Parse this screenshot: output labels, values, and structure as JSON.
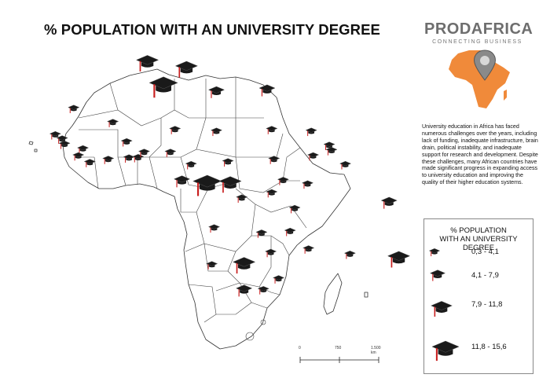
{
  "title": "% POPULATION WITH AN UNIVERSITY DEGREE",
  "brand": {
    "name": "PRODAFRICA",
    "tagline": "CONNECTING BUSINESS"
  },
  "description": "University education in Africa has faced numerous challenges over the years, including lack of funding, inadequate infrastructure, brain drain, political instability, and inadequate support for research and development. Despite these challenges, many African countries have made significant progress in expanding access to university education and improving the quality of their higher education systems.",
  "legend": {
    "title_line1": "% POPULATION",
    "title_line2": "WITH AN UNIVERSITY DEGREE",
    "classes": [
      {
        "label": "0,3 - 4,1",
        "size_class": 1
      },
      {
        "label": "4,1 - 7,9",
        "size_class": 2
      },
      {
        "label": "7,9 - 11,8",
        "size_class": 3
      },
      {
        "label": "11,8 - 15,6",
        "size_class": 4
      }
    ]
  },
  "scale_bar": {
    "labels": [
      "0",
      "750",
      "1.500 km"
    ]
  },
  "colors": {
    "land_fill": "#ffffff",
    "border": "#333333",
    "cap": "#1a1a1a",
    "tassel": "#c81e1e",
    "logo_orange": "#f08a3a"
  },
  "symbol_icon": "graduation-cap-icon",
  "map_data": {
    "symbols": [
      {
        "size_class": 3,
        "lon": 3.0,
        "lat": 35.5
      },
      {
        "size_class": 3,
        "lon": 11.5,
        "lat": 33.8
      },
      {
        "size_class": 4,
        "lon": 6.5,
        "lat": 29.0
      },
      {
        "size_class": 2,
        "lon": 18.0,
        "lat": 27.0
      },
      {
        "size_class": 2,
        "lon": 29.0,
        "lat": 27.5
      },
      {
        "size_class": 1,
        "lon": -13.0,
        "lat": 22.0
      },
      {
        "size_class": 1,
        "lon": -4.5,
        "lat": 18.0
      },
      {
        "size_class": 1,
        "lon": 9.0,
        "lat": 16.0
      },
      {
        "size_class": 1,
        "lon": 18.0,
        "lat": 15.5
      },
      {
        "size_class": 1,
        "lon": 30.0,
        "lat": 16.0
      },
      {
        "size_class": 1,
        "lon": 38.6,
        "lat": 15.5
      },
      {
        "size_class": 1,
        "lon": 42.5,
        "lat": 11.5
      },
      {
        "size_class": 1,
        "lon": -17.0,
        "lat": 14.5
      },
      {
        "size_class": 1,
        "lon": -15.5,
        "lat": 13.3
      },
      {
        "size_class": 1,
        "lon": -15.0,
        "lat": 11.8
      },
      {
        "size_class": 1,
        "lon": -11.0,
        "lat": 10.5
      },
      {
        "size_class": 1,
        "lon": -12.0,
        "lat": 8.5
      },
      {
        "size_class": 1,
        "lon": -9.5,
        "lat": 6.6
      },
      {
        "size_class": 1,
        "lon": -5.5,
        "lat": 7.5
      },
      {
        "size_class": 1,
        "lon": -1.5,
        "lat": 12.5
      },
      {
        "size_class": 1,
        "lon": -1.0,
        "lat": 7.9
      },
      {
        "size_class": 1,
        "lon": 1.0,
        "lat": 8.0
      },
      {
        "size_class": 1,
        "lon": 2.3,
        "lat": 9.5
      },
      {
        "size_class": 1,
        "lon": 8.0,
        "lat": 9.5
      },
      {
        "size_class": 1,
        "lon": 12.5,
        "lat": 6.0
      },
      {
        "size_class": 1,
        "lon": 20.5,
        "lat": 6.8
      },
      {
        "size_class": 1,
        "lon": 30.5,
        "lat": 7.5
      },
      {
        "size_class": 1,
        "lon": 39.0,
        "lat": 8.5
      },
      {
        "size_class": 1,
        "lon": 46.0,
        "lat": 6.0
      },
      {
        "size_class": 1,
        "lon": 43.0,
        "lat": 10.0
      },
      {
        "size_class": 2,
        "lon": 10.5,
        "lat": 1.6
      },
      {
        "size_class": 4,
        "lon": 16.0,
        "lat": 1.0
      },
      {
        "size_class": 3,
        "lon": 21.0,
        "lat": 1.0
      },
      {
        "size_class": 1,
        "lon": 32.5,
        "lat": 1.5
      },
      {
        "size_class": 1,
        "lon": 37.8,
        "lat": 0.5
      },
      {
        "size_class": 1,
        "lon": 30.0,
        "lat": -2.0
      },
      {
        "size_class": 1,
        "lon": 23.5,
        "lat": -3.5
      },
      {
        "size_class": 1,
        "lon": 35.0,
        "lat": -6.5
      },
      {
        "size_class": 2,
        "lon": 55.5,
        "lat": -4.5
      },
      {
        "size_class": 1,
        "lon": 17.5,
        "lat": -12.0
      },
      {
        "size_class": 1,
        "lon": 27.8,
        "lat": -13.5
      },
      {
        "size_class": 1,
        "lon": 34.0,
        "lat": -13.0
      },
      {
        "size_class": 1,
        "lon": 29.8,
        "lat": -19.0
      },
      {
        "size_class": 1,
        "lon": 38.0,
        "lat": -18.0
      },
      {
        "size_class": 1,
        "lon": 47.0,
        "lat": -19.5
      },
      {
        "size_class": 3,
        "lon": 57.6,
        "lat": -20.3
      },
      {
        "size_class": 1,
        "lon": 17.0,
        "lat": -22.5
      },
      {
        "size_class": 3,
        "lon": 24.0,
        "lat": -22.0
      },
      {
        "size_class": 2,
        "lon": 24.0,
        "lat": -29.5
      },
      {
        "size_class": 1,
        "lon": 31.5,
        "lat": -26.5
      },
      {
        "size_class": 1,
        "lon": 28.2,
        "lat": -29.6
      }
    ]
  }
}
